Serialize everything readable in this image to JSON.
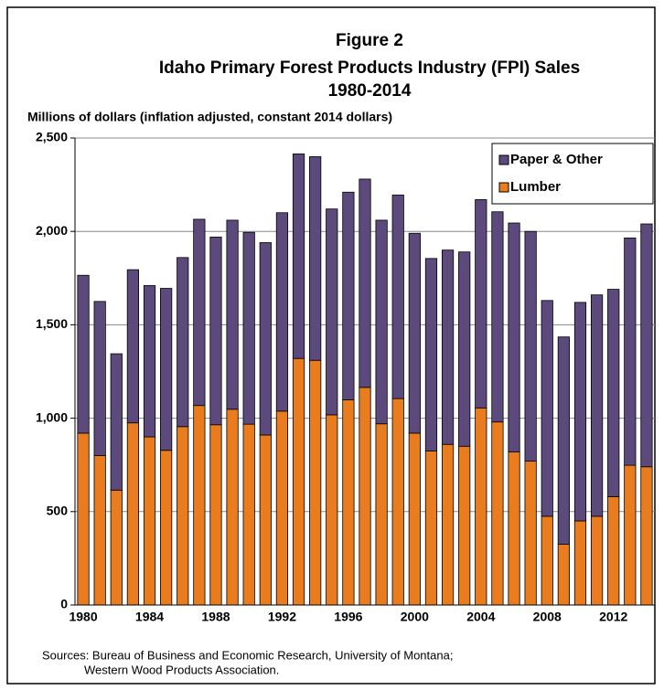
{
  "chart_data": {
    "type": "stacked-bar",
    "title": "Figure 2",
    "subtitle": "Idaho Primary Forest Products Industry (FPI) Sales",
    "subtitle2": "1980-2014",
    "y_label": "Millions of dollars (inflation adjusted, constant 2014 dollars)",
    "source": "Sources: Bureau of Business and Economic Research, University of Montana;",
    "source2": "Western Wood Products Association.",
    "categories": [
      "1980",
      null,
      null,
      null,
      "1984",
      null,
      null,
      null,
      "1988",
      null,
      null,
      null,
      "1992",
      null,
      null,
      null,
      "1996",
      null,
      null,
      null,
      "2000",
      null,
      null,
      null,
      "2004",
      null,
      null,
      null,
      "2008",
      null,
      null,
      null,
      "2012",
      null,
      null
    ],
    "series": [
      {
        "name": "Lumber",
        "color": "#e87c1e",
        "values": [
          920,
          800,
          615,
          975,
          900,
          828,
          955,
          1068,
          965,
          1048,
          968,
          910,
          1038,
          1320,
          1310,
          1018,
          1098,
          1165,
          970,
          1105,
          920,
          825,
          860,
          850,
          1055,
          980,
          820,
          770,
          475,
          325,
          450,
          475,
          580,
          748,
          740
        ]
      },
      {
        "name": "Paper & Other",
        "color": "#5c4a7c",
        "values": [
          845,
          825,
          730,
          820,
          810,
          867,
          905,
          997,
          1005,
          1012,
          1027,
          1030,
          1062,
          1095,
          1090,
          1102,
          1112,
          1115,
          1090,
          1090,
          1070,
          1030,
          1040,
          1040,
          1115,
          1125,
          1225,
          1230,
          1155,
          1110,
          1170,
          1185,
          1110,
          1217,
          1300
        ]
      }
    ],
    "ylim": [
      0,
      2500
    ],
    "yticks": [
      0,
      500,
      {
        "value": 1000,
        "label": "1,000"
      },
      {
        "value": 1500,
        "label": "1,500"
      },
      {
        "value": 2000,
        "label": "2,000"
      },
      {
        "value": 2500,
        "label": "2,500"
      }
    ],
    "grid": true,
    "legend": "top-right"
  }
}
